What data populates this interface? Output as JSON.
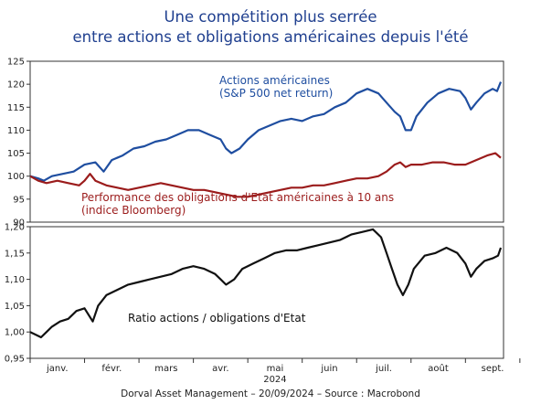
{
  "title": {
    "line1": "Une compétition plus serrée",
    "line2": "entre actions et obligations américaines depuis l'été"
  },
  "footer": "Dorval Asset Management – 20/09/2024 – Source : Macrobond",
  "colors": {
    "title": "#1f3f8f",
    "equities": "#1f4ea0",
    "bonds": "#9b1c1c",
    "ratio": "#111111",
    "frame": "#333333"
  },
  "chart_data": [
    {
      "type": "line",
      "ylim": [
        90,
        125
      ],
      "yticks": [
        90,
        95,
        100,
        105,
        110,
        115,
        120,
        125
      ],
      "grid": false,
      "x_range": [
        0,
        8.7
      ],
      "series": [
        {
          "name": "Actions américaines (S&P 500 net return)",
          "label_lines": [
            "Actions américaines",
            "(S&P 500 net return)"
          ],
          "color": "#1f4ea0",
          "points": [
            [
              0,
              100
            ],
            [
              0.15,
              99.5
            ],
            [
              0.25,
              99
            ],
            [
              0.4,
              100
            ],
            [
              0.6,
              100.5
            ],
            [
              0.8,
              101
            ],
            [
              1.0,
              102.5
            ],
            [
              1.2,
              103
            ],
            [
              1.35,
              101
            ],
            [
              1.5,
              103.5
            ],
            [
              1.7,
              104.5
            ],
            [
              1.9,
              106
            ],
            [
              2.1,
              106.5
            ],
            [
              2.3,
              107.5
            ],
            [
              2.5,
              108
            ],
            [
              2.7,
              109
            ],
            [
              2.9,
              110
            ],
            [
              3.1,
              110
            ],
            [
              3.3,
              109
            ],
            [
              3.5,
              108
            ],
            [
              3.6,
              106
            ],
            [
              3.7,
              105
            ],
            [
              3.85,
              106
            ],
            [
              4.0,
              108
            ],
            [
              4.2,
              110
            ],
            [
              4.4,
              111
            ],
            [
              4.6,
              112
            ],
            [
              4.8,
              112.5
            ],
            [
              5.0,
              112
            ],
            [
              5.2,
              113
            ],
            [
              5.4,
              113.5
            ],
            [
              5.6,
              115
            ],
            [
              5.8,
              116
            ],
            [
              6.0,
              118
            ],
            [
              6.2,
              119
            ],
            [
              6.4,
              118
            ],
            [
              6.55,
              116
            ],
            [
              6.7,
              114
            ],
            [
              6.8,
              113
            ],
            [
              6.9,
              110
            ],
            [
              7.0,
              110
            ],
            [
              7.1,
              113
            ],
            [
              7.3,
              116
            ],
            [
              7.5,
              118
            ],
            [
              7.7,
              119
            ],
            [
              7.9,
              118.5
            ],
            [
              8.0,
              117
            ],
            [
              8.1,
              114.5
            ],
            [
              8.2,
              116
            ],
            [
              8.35,
              118
            ],
            [
              8.5,
              119
            ],
            [
              8.58,
              118.5
            ],
            [
              8.65,
              120.5
            ]
          ]
        },
        {
          "name": "Performance des obligations d'Etat américaines à 10 ans (indice Bloomberg)",
          "label_lines": [
            "Performance des obligations d'Etat américaines à 10 ans",
            "(indice Bloomberg)"
          ],
          "color": "#9b1c1c",
          "points": [
            [
              0,
              100
            ],
            [
              0.15,
              99
            ],
            [
              0.3,
              98.5
            ],
            [
              0.5,
              99
            ],
            [
              0.7,
              98.5
            ],
            [
              0.9,
              98
            ],
            [
              1.0,
              99
            ],
            [
              1.1,
              100.5
            ],
            [
              1.2,
              99
            ],
            [
              1.4,
              98
            ],
            [
              1.6,
              97.5
            ],
            [
              1.8,
              97
            ],
            [
              2.0,
              97.5
            ],
            [
              2.2,
              98
            ],
            [
              2.4,
              98.5
            ],
            [
              2.6,
              98
            ],
            [
              2.8,
              97.5
            ],
            [
              3.0,
              97
            ],
            [
              3.2,
              97
            ],
            [
              3.4,
              96.5
            ],
            [
              3.6,
              96
            ],
            [
              3.8,
              95.5
            ],
            [
              4.0,
              95.5
            ],
            [
              4.2,
              96
            ],
            [
              4.4,
              96.5
            ],
            [
              4.6,
              97
            ],
            [
              4.8,
              97.5
            ],
            [
              5.0,
              97.5
            ],
            [
              5.2,
              98
            ],
            [
              5.4,
              98
            ],
            [
              5.6,
              98.5
            ],
            [
              5.8,
              99
            ],
            [
              6.0,
              99.5
            ],
            [
              6.2,
              99.5
            ],
            [
              6.4,
              100
            ],
            [
              6.55,
              101
            ],
            [
              6.7,
              102.5
            ],
            [
              6.8,
              103
            ],
            [
              6.9,
              102
            ],
            [
              7.0,
              102.5
            ],
            [
              7.2,
              102.5
            ],
            [
              7.4,
              103
            ],
            [
              7.6,
              103
            ],
            [
              7.8,
              102.5
            ],
            [
              8.0,
              102.5
            ],
            [
              8.2,
              103.5
            ],
            [
              8.4,
              104.5
            ],
            [
              8.55,
              105
            ],
            [
              8.65,
              104
            ]
          ]
        }
      ]
    },
    {
      "type": "line",
      "ylim": [
        0.95,
        1.2
      ],
      "yticks": [
        0.95,
        1.0,
        1.05,
        1.1,
        1.15,
        1.2
      ],
      "ytick_labels": [
        "0,95",
        "1,00",
        "1,05",
        "1,10",
        "1,15",
        "1,20"
      ],
      "grid": false,
      "x_range": [
        0,
        8.7
      ],
      "xtick_labels": [
        "janv.",
        "févr.",
        "mars",
        "avr.",
        "mai",
        "juin",
        "juil.",
        "août",
        "sept."
      ],
      "year_label": "2024",
      "series": [
        {
          "name": "Ratio actions / obligations d'Etat",
          "label_lines": [
            "Ratio actions / obligations d'Etat"
          ],
          "color": "#111111",
          "points": [
            [
              0,
              1.0
            ],
            [
              0.1,
              0.995
            ],
            [
              0.2,
              0.99
            ],
            [
              0.3,
              1.0
            ],
            [
              0.4,
              1.01
            ],
            [
              0.55,
              1.02
            ],
            [
              0.7,
              1.025
            ],
            [
              0.85,
              1.04
            ],
            [
              1.0,
              1.045
            ],
            [
              1.15,
              1.02
            ],
            [
              1.25,
              1.05
            ],
            [
              1.4,
              1.07
            ],
            [
              1.6,
              1.08
            ],
            [
              1.8,
              1.09
            ],
            [
              2.0,
              1.095
            ],
            [
              2.2,
              1.1
            ],
            [
              2.4,
              1.105
            ],
            [
              2.6,
              1.11
            ],
            [
              2.8,
              1.12
            ],
            [
              3.0,
              1.125
            ],
            [
              3.2,
              1.12
            ],
            [
              3.4,
              1.11
            ],
            [
              3.5,
              1.1
            ],
            [
              3.6,
              1.09
            ],
            [
              3.75,
              1.1
            ],
            [
              3.9,
              1.12
            ],
            [
              4.1,
              1.13
            ],
            [
              4.3,
              1.14
            ],
            [
              4.5,
              1.15
            ],
            [
              4.7,
              1.155
            ],
            [
              4.9,
              1.155
            ],
            [
              5.1,
              1.16
            ],
            [
              5.3,
              1.165
            ],
            [
              5.5,
              1.17
            ],
            [
              5.7,
              1.175
            ],
            [
              5.9,
              1.185
            ],
            [
              6.1,
              1.19
            ],
            [
              6.3,
              1.195
            ],
            [
              6.45,
              1.18
            ],
            [
              6.55,
              1.15
            ],
            [
              6.65,
              1.12
            ],
            [
              6.75,
              1.09
            ],
            [
              6.85,
              1.07
            ],
            [
              6.95,
              1.09
            ],
            [
              7.05,
              1.12
            ],
            [
              7.25,
              1.145
            ],
            [
              7.45,
              1.15
            ],
            [
              7.65,
              1.16
            ],
            [
              7.85,
              1.15
            ],
            [
              8.0,
              1.13
            ],
            [
              8.1,
              1.105
            ],
            [
              8.2,
              1.12
            ],
            [
              8.35,
              1.135
            ],
            [
              8.5,
              1.14
            ],
            [
              8.6,
              1.145
            ],
            [
              8.65,
              1.16
            ]
          ]
        }
      ]
    }
  ]
}
